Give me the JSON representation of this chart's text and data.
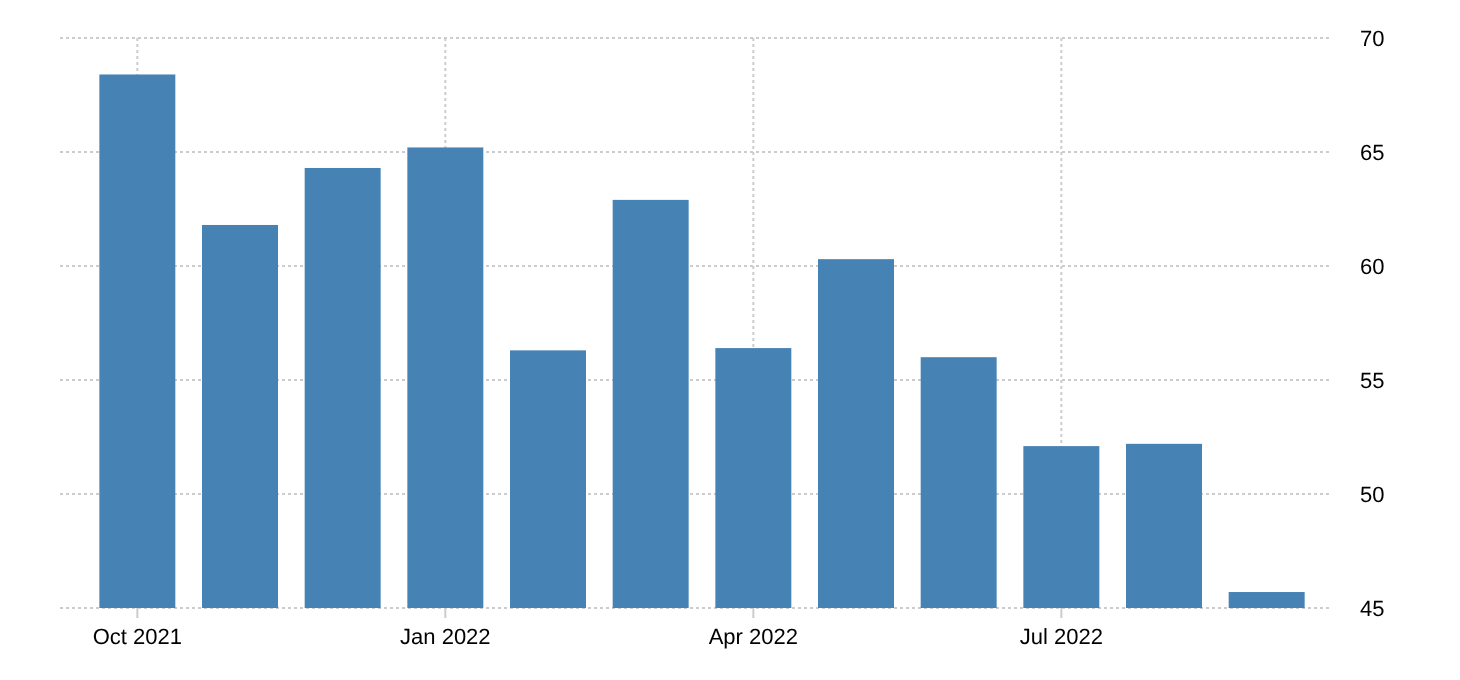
{
  "chart_data": {
    "type": "bar",
    "categories": [
      "Oct 2021",
      null,
      null,
      "Jan 2022",
      null,
      null,
      "Apr 2022",
      null,
      null,
      "Jul 2022",
      null,
      null
    ],
    "values": [
      68.4,
      61.8,
      64.3,
      65.2,
      56.3,
      62.9,
      56.4,
      60.3,
      56.0,
      52.1,
      52.2,
      45.7
    ],
    "color": "#4682b4",
    "ylim": [
      45,
      70
    ],
    "yticks": [
      45,
      50,
      55,
      60,
      65,
      70
    ],
    "grid": true
  }
}
